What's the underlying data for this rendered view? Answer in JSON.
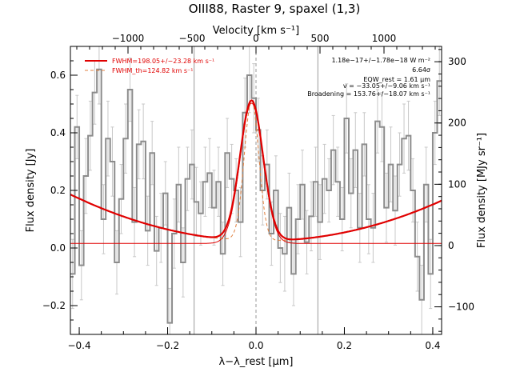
{
  "chart_data": {
    "type": "line",
    "title": "OIII88, Raster 9, spaxel (1,3)",
    "xlabel": "λ−λ_rest [μm]",
    "ylabel_left": "Flux density [Jy]",
    "ylabel_right": "Flux density [MJy sr⁻¹]",
    "xlabel_top": "Velocity [km s⁻¹]",
    "xlim": [
      -0.42,
      0.42
    ],
    "ylim": [
      -0.3,
      0.7
    ],
    "right_ylim": [
      -145,
      325
    ],
    "top_xlim": [
      -1450,
      1450
    ],
    "x_ticks": [
      -0.4,
      -0.2,
      0.0,
      0.2,
      0.4
    ],
    "x_tick_labels": [
      "−0.4",
      "−0.2",
      "0.0",
      "0.2",
      "0.4"
    ],
    "y_ticks": [
      -0.2,
      0.0,
      0.2,
      0.4,
      0.6
    ],
    "y_tick_labels": [
      "−0.2",
      "0.0",
      "0.2",
      "0.4",
      "0.6"
    ],
    "right_ticks": [
      -100,
      0,
      100,
      200,
      300
    ],
    "right_tick_labels": [
      "−100",
      "0",
      "100",
      "200",
      "300"
    ],
    "top_ticks": [
      -1000,
      -500,
      0,
      500,
      1000
    ],
    "top_tick_labels": [
      "−1000",
      "−500",
      "0",
      "500",
      "1000"
    ],
    "vertical_lines": [
      -0.14,
      0.14
    ],
    "rest_line": 0.0,
    "legend": [
      {
        "label": "FWHM=198.05+/−23.28 km s⁻¹",
        "style": "solid",
        "color": "#e00000"
      },
      {
        "label": "FWHM_th=124.82 km s⁻¹",
        "style": "dashed",
        "color": "#e08040"
      }
    ],
    "annotations": [
      "1.18e−17+/−1.78e−18 W m⁻²",
      "6.64σ",
      "EQW_rest = 1.61 μm",
      "v = −33.05+/−9.06 km s⁻¹",
      "Broadening = 153.76+/−18.07 km s⁻¹"
    ],
    "series": [
      {
        "name": "data",
        "color": "#8c8c8c",
        "x": [
          -0.415,
          -0.405,
          -0.395,
          -0.385,
          -0.375,
          -0.365,
          -0.355,
          -0.345,
          -0.335,
          -0.325,
          -0.315,
          -0.305,
          -0.295,
          -0.285,
          -0.275,
          -0.265,
          -0.255,
          -0.245,
          -0.235,
          -0.225,
          -0.215,
          -0.205,
          -0.195,
          -0.185,
          -0.175,
          -0.165,
          -0.155,
          -0.145,
          -0.135,
          -0.125,
          -0.115,
          -0.105,
          -0.095,
          -0.085,
          -0.075,
          -0.065,
          -0.055,
          -0.045,
          -0.035,
          -0.025,
          -0.015,
          -0.005,
          0.005,
          0.015,
          0.025,
          0.035,
          0.045,
          0.055,
          0.065,
          0.075,
          0.085,
          0.095,
          0.105,
          0.115,
          0.125,
          0.135,
          0.145,
          0.155,
          0.165,
          0.175,
          0.185,
          0.195,
          0.205,
          0.215,
          0.225,
          0.235,
          0.245,
          0.255,
          0.265,
          0.275,
          0.285,
          0.295,
          0.305,
          0.315,
          0.325,
          0.335,
          0.345,
          0.355,
          0.365,
          0.375,
          0.385,
          0.395,
          0.405,
          0.415
        ],
        "y": [
          -0.09,
          0.42,
          -0.06,
          0.25,
          0.39,
          0.54,
          0.62,
          0.1,
          0.38,
          0.3,
          -0.05,
          0.17,
          0.38,
          0.55,
          0.09,
          0.36,
          0.37,
          0.06,
          0.33,
          -0.01,
          0.07,
          0.19,
          -0.26,
          0.05,
          0.22,
          -0.05,
          0.24,
          0.29,
          0.16,
          0.12,
          0.23,
          0.26,
          0.14,
          0.23,
          -0.02,
          0.33,
          0.24,
          0.2,
          0.09,
          0.47,
          0.6,
          0.52,
          0.41,
          0.2,
          0.29,
          0.05,
          0.2,
          0.0,
          -0.02,
          0.14,
          -0.09,
          0.1,
          0.22,
          0.02,
          0.11,
          0.23,
          0.09,
          0.24,
          0.2,
          0.34,
          0.23,
          0.1,
          0.45,
          0.19,
          0.34,
          0.07,
          0.36,
          0.1,
          0.07,
          0.44,
          0.42,
          0.14,
          0.29,
          0.13,
          0.29,
          0.38,
          0.39,
          0.2,
          -0.03,
          -0.18,
          0.22,
          -0.09,
          0.4,
          0.58
        ],
        "err": [
          0.12,
          0.11,
          0.12,
          0.13,
          0.12,
          0.11,
          0.12,
          0.12,
          0.13,
          0.12,
          0.11,
          0.12,
          0.12,
          0.11,
          0.12,
          0.12,
          0.13,
          0.12,
          0.11,
          0.12,
          0.12,
          0.11,
          0.12,
          0.12,
          0.13,
          0.12,
          0.11,
          0.12,
          0.12,
          0.11,
          0.12,
          0.12,
          0.13,
          0.12,
          0.11,
          0.12,
          0.12,
          0.11,
          0.12,
          0.12,
          0.13,
          0.12,
          0.11,
          0.12,
          0.12,
          0.11,
          0.12,
          0.12,
          0.13,
          0.12,
          0.11,
          0.12,
          0.12,
          0.11,
          0.12,
          0.12,
          0.13,
          0.12,
          0.11,
          0.12,
          0.12,
          0.11,
          0.12,
          0.12,
          0.13,
          0.12,
          0.11,
          0.12,
          0.12,
          0.11,
          0.12,
          0.12,
          0.13,
          0.12,
          0.11,
          0.12,
          0.12,
          0.11,
          0.12,
          0.12,
          0.13,
          0.12,
          0.11,
          0.12
        ]
      },
      {
        "name": "FWHM=198.05+/−23.28 km s⁻¹",
        "color": "#e00000",
        "model": "gauss_plus_quadratic",
        "center": -0.01,
        "sigma": 0.026,
        "amplitude": 0.487,
        "baseline": [
          0.025,
          0.0,
          0.85
        ],
        "baseline_center": 0.015
      },
      {
        "name": "FWHM_th=124.82 km s⁻¹",
        "color": "#e08040",
        "model": "gauss_plus_quadratic",
        "center": -0.01,
        "sigma": 0.0165,
        "amplitude": 0.487,
        "baseline": [
          0.025,
          0.0,
          0.85
        ],
        "baseline_center": 0.015
      },
      {
        "name": "line_only",
        "color": "#e00000",
        "model": "gauss_flat",
        "center": -0.01,
        "sigma": 0.026,
        "amplitude": 0.487,
        "level": 0.016
      }
    ]
  }
}
